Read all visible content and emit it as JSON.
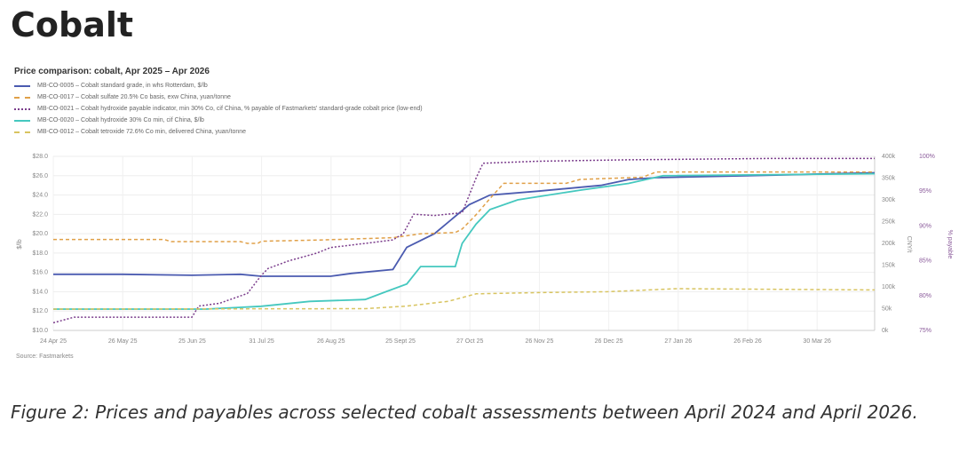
{
  "heading": "Cobalt",
  "caption": "Figure 2: Prices and payables across selected cobalt assessments between April 2024 and April 2026.",
  "chart_data": {
    "type": "line",
    "title": "Price comparison: cobalt, Apr 2025 – Apr 2026",
    "source": "Source: Fastmarkets",
    "x_unit": "months since 24 Apr 25",
    "x_ticks": [
      "24 Apr 25",
      "26 May 25",
      "25 Jun 25",
      "31 Jul 25",
      "26 Aug 25",
      "25 Sept 25",
      "27 Oct 25",
      "26 Nov 25",
      "26 Dec 25",
      "27 Jan 26",
      "26 Feb 26",
      "30 Mar 26"
    ],
    "y_left": {
      "label": "$/lb",
      "range": [
        10,
        28
      ],
      "ticks": [
        "$10.0",
        "$12.0",
        "$14.0",
        "$16.0",
        "$18.0",
        "$20.0",
        "$22.0",
        "$24.0",
        "$26.0",
        "$28.0"
      ]
    },
    "y_right": {
      "label": "CNY/t",
      "range": [
        0,
        400000
      ],
      "ticks": [
        "0k",
        "50k",
        "100k",
        "150k",
        "200k",
        "250k",
        "300k",
        "350k",
        "400k"
      ]
    },
    "y_right2": {
      "label": "% payable",
      "range": [
        75,
        100
      ],
      "ticks": [
        "75%",
        "80%",
        "85%",
        "90%",
        "95%",
        "100%"
      ]
    },
    "series": [
      {
        "name": "MB-CO-0005 – Cobalt standard grade, in whs Rotterdam, $/lb",
        "axis": "left",
        "color": "#4b5bb0",
        "style": "solid",
        "points": [
          [
            0,
            15.8
          ],
          [
            1,
            15.8
          ],
          [
            2,
            15.7
          ],
          [
            2.7,
            15.8
          ],
          [
            3,
            15.6
          ],
          [
            4,
            15.6
          ],
          [
            4.3,
            15.9
          ],
          [
            4.9,
            16.3
          ],
          [
            5.1,
            18.6
          ],
          [
            5.5,
            20
          ],
          [
            6,
            23
          ],
          [
            6.3,
            24
          ],
          [
            7,
            24.4
          ],
          [
            7.9,
            25
          ],
          [
            8.3,
            25.6
          ],
          [
            8.7,
            25.8
          ],
          [
            10,
            26
          ],
          [
            11.85,
            26.3
          ]
        ]
      },
      {
        "name": "MB-CO-0017 – Cobalt sulfate 20.5% Co basis, exw China, yuan/tonne",
        "axis": "right",
        "color": "#e0a048",
        "style": "dashed",
        "points": [
          [
            0,
            209000
          ],
          [
            1.6,
            209000
          ],
          [
            1.7,
            204000
          ],
          [
            2.7,
            204000
          ],
          [
            2.8,
            200000
          ],
          [
            2.95,
            200000
          ],
          [
            3.0,
            205000
          ],
          [
            3.9,
            208000
          ],
          [
            4.5,
            211000
          ],
          [
            4.9,
            213000
          ],
          [
            5.3,
            222000
          ],
          [
            5.8,
            225000
          ],
          [
            5.9,
            233000
          ],
          [
            6.1,
            266000
          ],
          [
            6.3,
            303000
          ],
          [
            6.5,
            338000
          ],
          [
            7.4,
            338000
          ],
          [
            7.6,
            347000
          ],
          [
            8.5,
            352000
          ],
          [
            8.7,
            364000
          ],
          [
            11.85,
            364000
          ]
        ]
      },
      {
        "name": "MB-CO-0021 – Cobalt hydroxide payable indicator, min 30% Co, cif China, % payable of Fastmarkets' standard-grade cobalt price (low-end)",
        "axis": "right2",
        "color": "#7b3d8c",
        "style": "dotted",
        "points": [
          [
            0,
            76.1
          ],
          [
            0.3,
            76.9
          ],
          [
            2.0,
            76.9
          ],
          [
            2.1,
            78.5
          ],
          [
            2.4,
            78.9
          ],
          [
            2.8,
            80.3
          ],
          [
            3.0,
            82.9
          ],
          [
            3.1,
            83.9
          ],
          [
            3.4,
            85
          ],
          [
            3.8,
            86.1
          ],
          [
            4.0,
            86.9
          ],
          [
            4.5,
            87.5
          ],
          [
            4.9,
            88
          ],
          [
            5.05,
            88.9
          ],
          [
            5.2,
            91.7
          ],
          [
            5.5,
            91.5
          ],
          [
            5.9,
            91.9
          ],
          [
            6.1,
            96.9
          ],
          [
            6.2,
            99
          ],
          [
            7.0,
            99.3
          ],
          [
            8.3,
            99.5
          ],
          [
            10.3,
            99.7
          ],
          [
            11.85,
            99.7
          ]
        ]
      },
      {
        "name": "MB-CO-0020 – Cobalt hydroxide 30% Co min, cif China, $/lb",
        "axis": "left",
        "color": "#45c8bf",
        "style": "solid",
        "points": [
          [
            0,
            12.2
          ],
          [
            2.2,
            12.2
          ],
          [
            3,
            12.5
          ],
          [
            3.7,
            13
          ],
          [
            4.5,
            13.2
          ],
          [
            4.8,
            14
          ],
          [
            5.1,
            14.8
          ],
          [
            5.3,
            16.6
          ],
          [
            5.8,
            16.6
          ],
          [
            5.9,
            19
          ],
          [
            6.1,
            21
          ],
          [
            6.3,
            22.5
          ],
          [
            6.7,
            23.5
          ],
          [
            7.6,
            24.5
          ],
          [
            8.3,
            25.2
          ],
          [
            8.8,
            26
          ],
          [
            11.85,
            26.2
          ]
        ]
      },
      {
        "name": "MB-CO-0012 – Cobalt tetroxide 72.6% Co min, delivered China, yuan/tonne",
        "axis": "right",
        "color": "#d8c460",
        "style": "dashed",
        "points": [
          [
            0,
            49000
          ],
          [
            4.5,
            50000
          ],
          [
            5.1,
            56000
          ],
          [
            5.7,
            67000
          ],
          [
            6.1,
            84000
          ],
          [
            7,
            87000
          ],
          [
            8,
            89000
          ],
          [
            9,
            96000
          ],
          [
            11.85,
            93000
          ]
        ]
      }
    ]
  }
}
